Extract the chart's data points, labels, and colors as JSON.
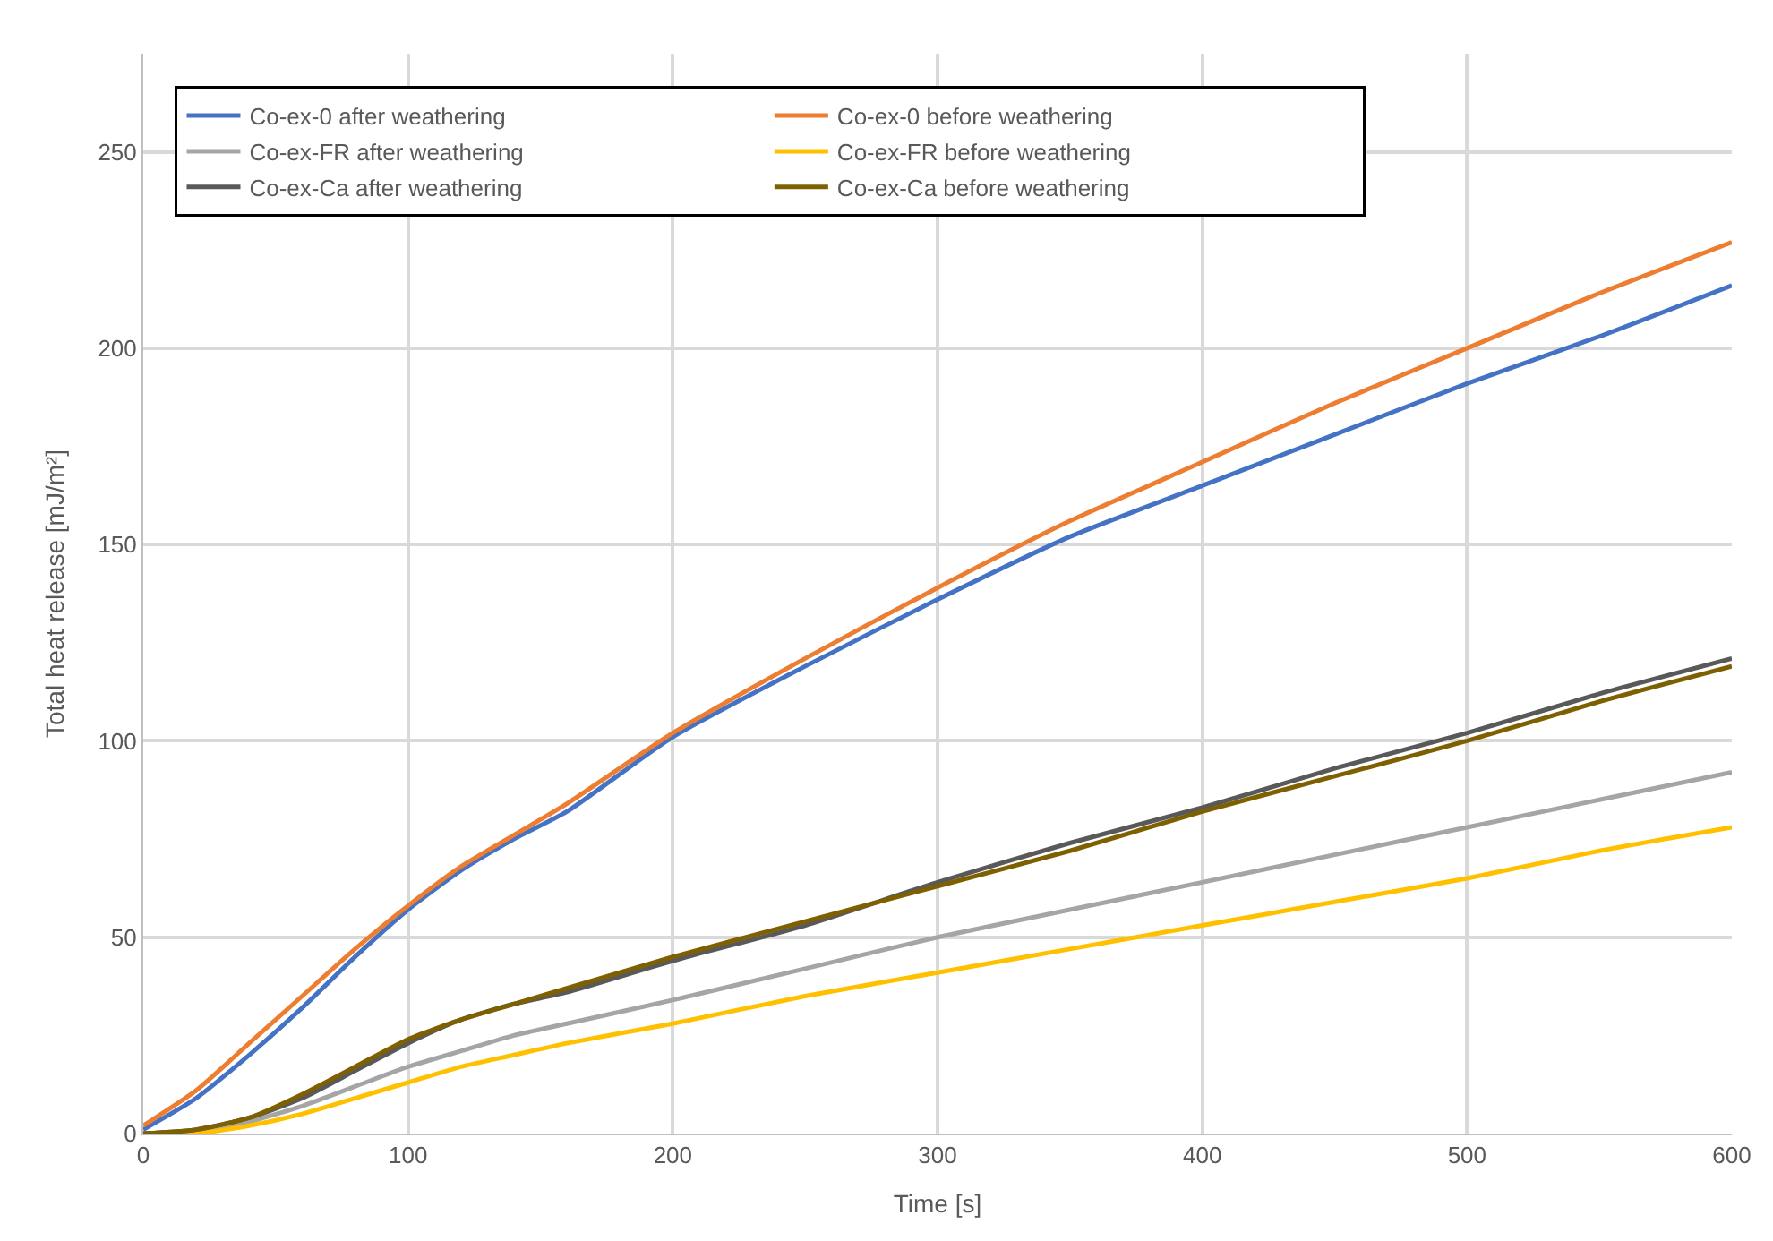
{
  "chart_data": {
    "type": "line",
    "xlabel": "Time [s]",
    "ylabel": "Total heat release [mJ/m²]",
    "x": [
      0,
      20,
      40,
      60,
      80,
      100,
      120,
      140,
      160,
      200,
      250,
      300,
      350,
      400,
      450,
      500,
      550,
      600
    ],
    "xlim": [
      0,
      600
    ],
    "xticks": [
      0,
      100,
      200,
      300,
      400,
      500,
      600
    ],
    "ylim": [
      0,
      275
    ],
    "yticks": [
      0,
      50,
      100,
      150,
      200,
      250
    ],
    "grid": true,
    "legend": "top left",
    "marker": "none",
    "line_style": "solid",
    "series": [
      {
        "name": "Co-ex-0 after weathering",
        "color": "#4472c4",
        "values": [
          1,
          9,
          20,
          32,
          45,
          57,
          67,
          75,
          82,
          101,
          119,
          136,
          152,
          165,
          178,
          191,
          203,
          216
        ]
      },
      {
        "name": "Co-ex-0 before weathering",
        "color": "#ed7d31",
        "values": [
          2,
          11,
          23,
          35,
          47,
          58,
          68,
          76,
          84,
          102,
          121,
          139,
          156,
          171,
          186,
          200,
          214,
          227
        ]
      },
      {
        "name": "Co-ex-FR after weathering",
        "color": "#a5a5a5",
        "values": [
          0,
          0.5,
          3,
          7,
          12,
          17,
          21,
          25,
          28,
          34,
          42,
          50,
          57,
          64,
          71,
          78,
          85,
          92
        ]
      },
      {
        "name": "Co-ex-FR before weathering",
        "color": "#ffc000",
        "values": [
          0,
          0,
          2,
          5,
          9,
          13,
          17,
          20,
          23,
          28,
          35,
          41,
          47,
          53,
          59,
          65,
          72,
          78
        ]
      },
      {
        "name": "Co-ex-Ca after weathering",
        "color": "#595959",
        "values": [
          0,
          1,
          4,
          9,
          16,
          23,
          29,
          33,
          36,
          44,
          53,
          64,
          74,
          83,
          93,
          102,
          112,
          121
        ]
      },
      {
        "name": "Co-ex-Ca before weathering",
        "color": "#7f6000",
        "values": [
          0,
          1,
          4,
          10,
          17,
          24,
          29,
          33,
          37,
          45,
          54,
          63,
          72,
          82,
          91,
          100,
          110,
          119
        ]
      }
    ]
  }
}
